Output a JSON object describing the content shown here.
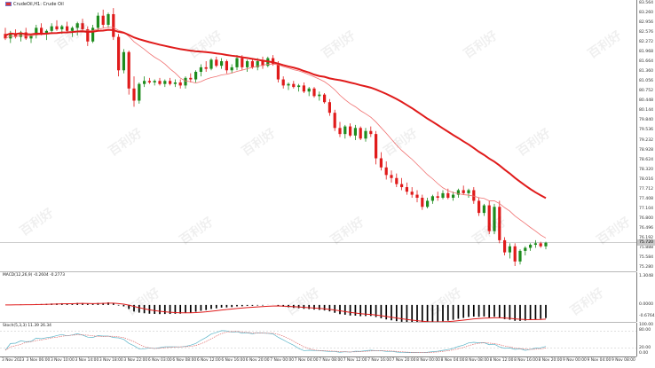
{
  "window": {
    "symbol_title": "CrudeOil,H1: Crude Oil",
    "macd_title": "MACD(12,26,9) -0.2604 -0.2773",
    "stoch_title": "Stoch(5,3,3) 11.39 26.34",
    "current_price": "75.720",
    "watermark_text": "百利好",
    "watermark_sub": "POLOTO"
  },
  "price_scale": {
    "labels": [
      "83.564",
      "83.260",
      "82.956",
      "82.576",
      "82.272",
      "81.968",
      "81.664",
      "81.360",
      "81.056",
      "80.752",
      "80.448",
      "80.144",
      "79.840",
      "79.536",
      "79.232",
      "78.928",
      "78.624",
      "78.320",
      "78.016",
      "77.712",
      "77.408",
      "77.104",
      "76.800",
      "76.496",
      "76.192",
      "75.888",
      "75.584",
      "75.280"
    ],
    "max": 83.6,
    "min": 74.95
  },
  "macd_scale": {
    "labels": [
      "1.3048",
      "0.0000",
      "-0.6764"
    ]
  },
  "stoch_scale": {
    "labels": [
      "100.00",
      "80.00",
      "20.00",
      "0.00"
    ]
  },
  "time_axis": {
    "labels": [
      "3 Nov 2023",
      "3 Nov 06:00",
      "3 Nov 10:00",
      "3 Nov 14:00",
      "3 Nov 18:00",
      "3 Nov 22:00",
      "6 Nov 03:00",
      "6 Nov 08:00",
      "6 Nov 12:00",
      "6 Nov 16:00",
      "6 Nov 20:00",
      "7 Nov 00:00",
      "7 Nov 04:00",
      "7 Nov 08:00",
      "7 Nov 12:00",
      "7 Nov 16:00",
      "7 Nov 20:00",
      "8 Nov 00:00",
      "8 Nov 04:00",
      "8 Nov 08:00",
      "8 Nov 12:00",
      "8 Nov 16:00",
      "8 Nov 20:00",
      "9 Nov 00:00",
      "9 Nov 04:00",
      "9 Nov 08:00"
    ]
  },
  "colors": {
    "bull": "#1e8c1e",
    "bear": "#e01b1b",
    "ma_slow": "#e01b1b",
    "ma_fast": "#f07070",
    "macd_hist": "#000000",
    "macd_signal": "#e01b1b",
    "stoch_main": "#5ab4c8",
    "stoch_signal": "#e07070"
  },
  "chart_data": {
    "type": "candlestick",
    "candles": [
      [
        82.6,
        82.8,
        82.4,
        82.45
      ],
      [
        82.45,
        82.7,
        82.3,
        82.6
      ],
      [
        82.6,
        82.75,
        82.45,
        82.5
      ],
      [
        82.5,
        82.7,
        82.35,
        82.65
      ],
      [
        82.65,
        82.8,
        82.4,
        82.45
      ],
      [
        82.45,
        82.6,
        82.3,
        82.55
      ],
      [
        82.55,
        82.9,
        82.45,
        82.8
      ],
      [
        82.8,
        82.95,
        82.55,
        82.6
      ],
      [
        82.6,
        82.75,
        82.4,
        82.7
      ],
      [
        82.7,
        82.95,
        82.6,
        82.85
      ],
      [
        82.85,
        83.05,
        82.7,
        82.75
      ],
      [
        82.75,
        82.9,
        82.6,
        82.85
      ],
      [
        82.85,
        83.0,
        82.65,
        82.7
      ],
      [
        82.7,
        82.85,
        82.5,
        82.8
      ],
      [
        82.8,
        83.0,
        82.55,
        82.95
      ],
      [
        82.95,
        83.1,
        82.7,
        82.75
      ],
      [
        82.75,
        82.85,
        82.2,
        82.35
      ],
      [
        82.35,
        82.9,
        82.3,
        82.8
      ],
      [
        82.8,
        83.3,
        82.7,
        83.2
      ],
      [
        83.2,
        83.4,
        82.8,
        82.9
      ],
      [
        82.9,
        83.3,
        82.8,
        83.25
      ],
      [
        83.25,
        83.45,
        82.4,
        82.5
      ],
      [
        82.5,
        82.6,
        81.2,
        81.4
      ],
      [
        81.4,
        82.1,
        81.3,
        82.0
      ],
      [
        82.0,
        82.05,
        80.6,
        80.8
      ],
      [
        80.8,
        81.2,
        80.2,
        80.4
      ],
      [
        80.4,
        81.0,
        80.3,
        80.95
      ],
      [
        80.95,
        81.2,
        80.85,
        81.05
      ],
      [
        81.05,
        81.15,
        80.95,
        81.0
      ],
      [
        81.0,
        81.1,
        80.9,
        81.05
      ],
      [
        81.05,
        81.15,
        80.9,
        80.95
      ],
      [
        80.95,
        81.1,
        80.85,
        81.05
      ],
      [
        81.05,
        81.15,
        80.9,
        80.95
      ],
      [
        80.95,
        81.1,
        80.85,
        81.0
      ],
      [
        81.0,
        81.1,
        80.8,
        80.9
      ],
      [
        80.9,
        81.2,
        80.8,
        81.15
      ],
      [
        81.15,
        81.3,
        81.0,
        81.1
      ],
      [
        81.1,
        81.4,
        81.0,
        81.35
      ],
      [
        81.35,
        81.6,
        81.2,
        81.5
      ],
      [
        81.5,
        81.7,
        81.35,
        81.45
      ],
      [
        81.45,
        81.8,
        81.4,
        81.75
      ],
      [
        81.75,
        81.85,
        81.5,
        81.55
      ],
      [
        81.55,
        81.8,
        81.45,
        81.7
      ],
      [
        81.7,
        81.75,
        81.3,
        81.4
      ],
      [
        81.4,
        81.6,
        81.3,
        81.5
      ],
      [
        81.5,
        81.9,
        81.4,
        81.8
      ],
      [
        81.8,
        81.9,
        81.4,
        81.5
      ],
      [
        81.5,
        81.75,
        81.35,
        81.7
      ],
      [
        81.7,
        81.8,
        81.45,
        81.5
      ],
      [
        81.5,
        81.8,
        81.4,
        81.7
      ],
      [
        81.7,
        81.85,
        81.45,
        81.55
      ],
      [
        81.55,
        81.85,
        81.5,
        81.8
      ],
      [
        81.8,
        81.9,
        81.55,
        81.6
      ],
      [
        81.6,
        81.7,
        81.0,
        81.1
      ],
      [
        81.1,
        81.2,
        80.8,
        80.9
      ],
      [
        80.9,
        81.0,
        80.75,
        80.95
      ],
      [
        80.95,
        81.05,
        80.8,
        80.85
      ],
      [
        80.85,
        80.95,
        80.7,
        80.9
      ],
      [
        80.9,
        81.0,
        80.65,
        80.7
      ],
      [
        80.7,
        80.85,
        80.55,
        80.8
      ],
      [
        80.8,
        80.85,
        80.5,
        80.55
      ],
      [
        80.55,
        80.7,
        80.4,
        80.6
      ],
      [
        80.6,
        80.65,
        80.3,
        80.35
      ],
      [
        80.35,
        80.45,
        79.9,
        80.0
      ],
      [
        80.0,
        80.1,
        79.4,
        79.5
      ],
      [
        79.5,
        79.7,
        79.2,
        79.3
      ],
      [
        79.3,
        79.6,
        79.15,
        79.55
      ],
      [
        79.55,
        79.65,
        79.2,
        79.25
      ],
      [
        79.25,
        79.6,
        79.1,
        79.5
      ],
      [
        79.5,
        79.55,
        79.1,
        79.15
      ],
      [
        79.15,
        79.5,
        79.05,
        79.4
      ],
      [
        79.4,
        79.55,
        79.2,
        79.3
      ],
      [
        79.3,
        79.4,
        78.3,
        78.5
      ],
      [
        78.5,
        78.7,
        78.1,
        78.2
      ],
      [
        78.2,
        78.4,
        77.8,
        77.95
      ],
      [
        77.95,
        78.1,
        77.7,
        77.85
      ],
      [
        77.85,
        78.0,
        77.55,
        77.65
      ],
      [
        77.65,
        77.85,
        77.45,
        77.55
      ],
      [
        77.55,
        77.7,
        77.3,
        77.4
      ],
      [
        77.4,
        77.55,
        77.2,
        77.3
      ],
      [
        77.3,
        77.45,
        77.05,
        77.2
      ],
      [
        77.2,
        77.3,
        76.8,
        76.9
      ],
      [
        76.9,
        77.2,
        76.85,
        77.1
      ],
      [
        77.1,
        77.3,
        77.0,
        77.25
      ],
      [
        77.25,
        77.4,
        77.1,
        77.2
      ],
      [
        77.2,
        77.45,
        77.15,
        77.35
      ],
      [
        77.35,
        77.5,
        77.15,
        77.2
      ],
      [
        77.2,
        77.4,
        77.1,
        77.3
      ],
      [
        77.3,
        77.5,
        77.2,
        77.45
      ],
      [
        77.45,
        77.6,
        77.3,
        77.35
      ],
      [
        77.35,
        77.5,
        77.2,
        77.45
      ],
      [
        77.45,
        77.55,
        77.0,
        77.1
      ],
      [
        77.1,
        77.2,
        76.6,
        76.7
      ],
      [
        76.7,
        77.0,
        76.6,
        76.95
      ],
      [
        76.95,
        77.1,
        76.0,
        76.1
      ],
      [
        76.1,
        77.0,
        76.0,
        76.9
      ],
      [
        76.9,
        77.1,
        75.7,
        75.8
      ],
      [
        75.8,
        75.9,
        75.3,
        75.4
      ],
      [
        75.4,
        75.7,
        75.2,
        75.6
      ],
      [
        75.6,
        75.7,
        74.95,
        75.1
      ],
      [
        75.1,
        75.5,
        75.0,
        75.45
      ],
      [
        75.45,
        75.6,
        75.3,
        75.55
      ],
      [
        75.55,
        75.7,
        75.45,
        75.65
      ],
      [
        75.65,
        75.8,
        75.55,
        75.7
      ],
      [
        75.7,
        75.75,
        75.55,
        75.6
      ],
      [
        75.6,
        75.75,
        75.5,
        75.72
      ]
    ]
  }
}
